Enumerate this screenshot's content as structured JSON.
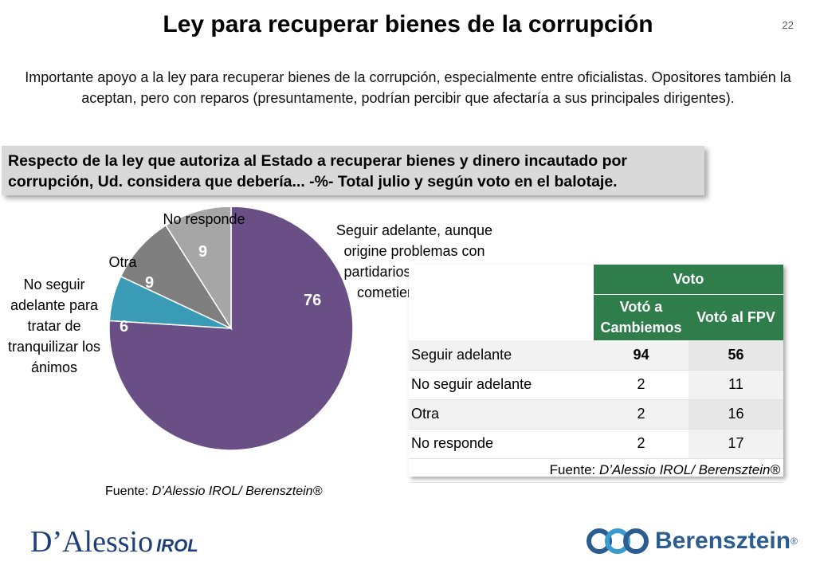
{
  "page": {
    "title": "Ley para recuperar bienes de la corrupción",
    "page_number": "22",
    "subtitle": "Importante apoyo a la ley para recuperar bienes de la corrupción, especialmente entre oficialistas. Opositores también la aceptan, pero con reparos (presuntamente, podrían percibir que afectaría a sus principales dirigentes).",
    "question": "Respecto de la ley que autoriza al Estado a recuperar bienes y dinero incautado por corrupción, Ud. considera que debería... -%- Total julio y según voto en el balotaje."
  },
  "chart_data": [
    {
      "type": "pie",
      "slices": [
        {
          "label": "Seguir adelante, aunque origine problemas con partidarios de quienes cometieron ilícitos",
          "value": 76,
          "color": "#6a4e86"
        },
        {
          "label": "No seguir adelante para tratar de tranquilizar los ánimos",
          "value": 6,
          "color": "#3a9bb7"
        },
        {
          "label": "Otra",
          "value": 9,
          "color": "#7f7f7f"
        },
        {
          "label": "No responde",
          "value": 9,
          "color": "#a6a6a6"
        }
      ],
      "value_labels": [
        "76",
        "6",
        "9",
        "9"
      ],
      "source_prefix": "Fuente: ",
      "source_italic": "D’Alessio IROL/ Berensztein®"
    },
    {
      "type": "table",
      "group_header": "Voto",
      "columns": [
        "Votó a Cambiemos",
        "Votó al FPV"
      ],
      "rows": [
        {
          "label": "Seguir adelante",
          "values": [
            "94",
            "56"
          ]
        },
        {
          "label": "No seguir adelante",
          "values": [
            "2",
            "11"
          ]
        },
        {
          "label": "Otra",
          "values": [
            "2",
            "16"
          ]
        },
        {
          "label": "No responde",
          "values": [
            "2",
            "17"
          ]
        }
      ],
      "source_prefix": "Fuente: ",
      "source_italic": "D’Alessio IROL/ Berensztein®"
    }
  ],
  "logos": {
    "left_main": "D’Alessio",
    "left_suffix": "IROL",
    "right_brand": "Berensztein",
    "right_reg": "®"
  },
  "colors": {
    "table_header": "#2e7d4a",
    "brand_blue": "#2b5d92"
  }
}
